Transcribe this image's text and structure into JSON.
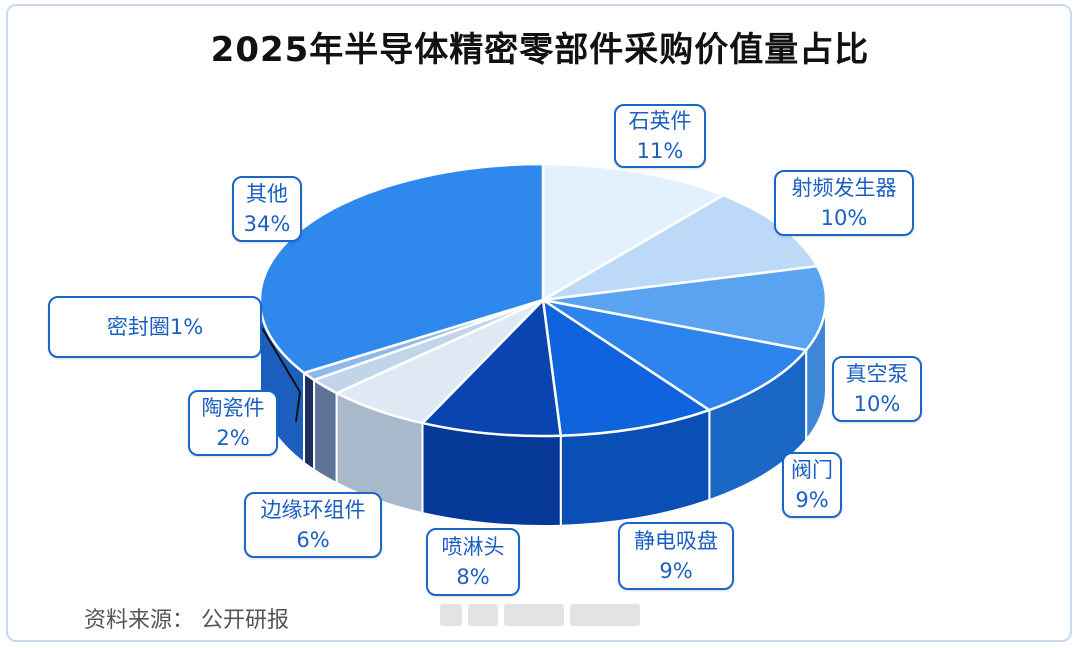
{
  "chart_data": {
    "type": "pie",
    "title": "2025年半导体精密零部件采购价值量占比",
    "slices": [
      {
        "label": "石英件",
        "value": 11,
        "percent": "11%",
        "color": "#e3f0fd",
        "side": "#cfe2f7"
      },
      {
        "label": "射频发生器",
        "value": 10,
        "percent": "10%",
        "color": "#bcdaf8",
        "side": "#a6cbf1"
      },
      {
        "label": "真空泵",
        "value": 10,
        "percent": "10%",
        "color": "#5aa3f1",
        "side": "#3d86d8"
      },
      {
        "label": "阀门",
        "value": 9,
        "percent": "9%",
        "color": "#2d84ec",
        "side": "#1a67c6"
      },
      {
        "label": "静电吸盘",
        "value": 9,
        "percent": "9%",
        "color": "#0f63dc",
        "side": "#0a4fb5"
      },
      {
        "label": "喷淋头",
        "value": 8,
        "percent": "8%",
        "color": "#0944b0",
        "side": "#073a98"
      },
      {
        "label": "边缘环组件",
        "value": 6,
        "percent": "6%",
        "color": "#dfe9f4",
        "side": "#a9b9cc"
      },
      {
        "label": "陶瓷件",
        "value": 2,
        "percent": "2%",
        "color": "#c2d4ea",
        "side": "#5e7597"
      },
      {
        "label": "密封圈",
        "value": 1,
        "percent": "1%",
        "color": "#8fb9ea",
        "side": "#1a2f5e"
      },
      {
        "label": "其他",
        "value": 34,
        "percent": "34%",
        "color": "#2f88ec",
        "side": "#1c5fbf"
      }
    ],
    "legend": "callouts"
  },
  "callouts": {
    "quartz": {
      "label": "石英件",
      "percent": "11%"
    },
    "rf": {
      "label": "射频发生器",
      "percent": "10%"
    },
    "vacuum": {
      "label": "真空泵",
      "percent": "10%"
    },
    "valve": {
      "label": "阀门",
      "percent": "9%"
    },
    "esc": {
      "label": "静电吸盘",
      "percent": "9%"
    },
    "shower": {
      "label": "喷淋头",
      "percent": "8%"
    },
    "edge": {
      "label": "边缘环组件",
      "percent": "6%"
    },
    "ceramic": {
      "label": "陶瓷件",
      "percent": "2%"
    },
    "seal": {
      "label": "密封圈1%"
    },
    "other": {
      "label": "其他",
      "percent": "34%"
    }
  },
  "source": "资料来源： 公开研报",
  "accent_color": "#1a66c9"
}
